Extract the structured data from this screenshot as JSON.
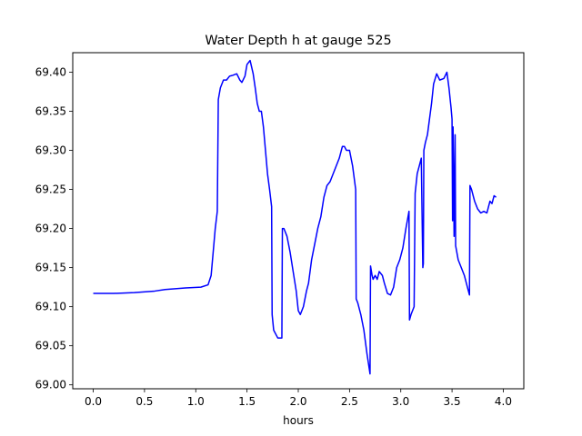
{
  "chart_data": {
    "type": "line",
    "title": "Water Depth h at gauge 525",
    "xlabel": "hours",
    "ylabel": "",
    "xlim": [
      -0.2,
      4.2
    ],
    "ylim": [
      68.995,
      69.425
    ],
    "grid": false,
    "x_ticks": [
      0.0,
      0.5,
      1.0,
      1.5,
      2.0,
      2.5,
      3.0,
      3.5,
      4.0
    ],
    "x_tick_labels": [
      "0.0",
      "0.5",
      "1.0",
      "1.5",
      "2.0",
      "2.5",
      "3.0",
      "3.5",
      "4.0"
    ],
    "y_ticks": [
      69.0,
      69.05,
      69.1,
      69.15,
      69.2,
      69.25,
      69.3,
      69.35,
      69.4
    ],
    "y_tick_labels": [
      "69.00",
      "69.05",
      "69.10",
      "69.15",
      "69.20",
      "69.25",
      "69.30",
      "69.35",
      "69.40"
    ],
    "series": [
      {
        "color": "#0000ff",
        "points": [
          [
            0.0,
            69.117
          ],
          [
            0.2,
            69.117
          ],
          [
            0.4,
            69.118
          ],
          [
            0.6,
            69.12
          ],
          [
            0.7,
            69.122
          ],
          [
            0.9,
            69.124
          ],
          [
            1.05,
            69.125
          ],
          [
            1.12,
            69.128
          ],
          [
            1.15,
            69.14
          ],
          [
            1.17,
            69.17
          ],
          [
            1.19,
            69.2
          ],
          [
            1.21,
            69.222
          ],
          [
            1.22,
            69.365
          ],
          [
            1.24,
            69.38
          ],
          [
            1.27,
            69.39
          ],
          [
            1.3,
            69.39
          ],
          [
            1.33,
            69.395
          ],
          [
            1.36,
            69.396
          ],
          [
            1.4,
            69.398
          ],
          [
            1.43,
            69.39
          ],
          [
            1.45,
            69.387
          ],
          [
            1.48,
            69.395
          ],
          [
            1.5,
            69.41
          ],
          [
            1.53,
            69.415
          ],
          [
            1.56,
            69.398
          ],
          [
            1.58,
            69.38
          ],
          [
            1.6,
            69.36
          ],
          [
            1.62,
            69.35
          ],
          [
            1.64,
            69.35
          ],
          [
            1.66,
            69.33
          ],
          [
            1.68,
            69.3
          ],
          [
            1.7,
            69.27
          ],
          [
            1.72,
            69.25
          ],
          [
            1.74,
            69.228
          ],
          [
            1.745,
            69.09
          ],
          [
            1.76,
            69.07
          ],
          [
            1.8,
            69.06
          ],
          [
            1.84,
            69.06
          ],
          [
            1.845,
            69.2
          ],
          [
            1.86,
            69.2
          ],
          [
            1.89,
            69.19
          ],
          [
            1.92,
            69.17
          ],
          [
            1.95,
            69.145
          ],
          [
            1.98,
            69.12
          ],
          [
            2.0,
            69.095
          ],
          [
            2.02,
            69.09
          ],
          [
            2.05,
            69.1
          ],
          [
            2.08,
            69.12
          ],
          [
            2.1,
            69.13
          ],
          [
            2.13,
            69.16
          ],
          [
            2.16,
            69.18
          ],
          [
            2.19,
            69.2
          ],
          [
            2.22,
            69.215
          ],
          [
            2.25,
            69.24
          ],
          [
            2.28,
            69.255
          ],
          [
            2.31,
            69.26
          ],
          [
            2.34,
            69.27
          ],
          [
            2.37,
            69.28
          ],
          [
            2.4,
            69.29
          ],
          [
            2.43,
            69.305
          ],
          [
            2.45,
            69.305
          ],
          [
            2.47,
            69.3
          ],
          [
            2.5,
            69.3
          ],
          [
            2.53,
            69.28
          ],
          [
            2.56,
            69.25
          ],
          [
            2.565,
            69.11
          ],
          [
            2.58,
            69.105
          ],
          [
            2.61,
            69.09
          ],
          [
            2.64,
            69.07
          ],
          [
            2.67,
            69.04
          ],
          [
            2.7,
            69.014
          ],
          [
            2.705,
            69.152
          ],
          [
            2.72,
            69.14
          ],
          [
            2.73,
            69.135
          ],
          [
            2.75,
            69.14
          ],
          [
            2.77,
            69.135
          ],
          [
            2.79,
            69.145
          ],
          [
            2.82,
            69.14
          ],
          [
            2.84,
            69.13
          ],
          [
            2.87,
            69.117
          ],
          [
            2.9,
            69.115
          ],
          [
            2.93,
            69.125
          ],
          [
            2.96,
            69.15
          ],
          [
            2.99,
            69.16
          ],
          [
            3.02,
            69.175
          ],
          [
            3.05,
            69.2
          ],
          [
            3.08,
            69.222
          ],
          [
            3.085,
            69.083
          ],
          [
            3.1,
            69.09
          ],
          [
            3.13,
            69.1
          ],
          [
            3.14,
            69.245
          ],
          [
            3.16,
            69.27
          ],
          [
            3.18,
            69.28
          ],
          [
            3.2,
            69.29
          ],
          [
            3.215,
            69.15
          ],
          [
            3.22,
            69.155
          ],
          [
            3.225,
            69.3
          ],
          [
            3.24,
            69.31
          ],
          [
            3.26,
            69.32
          ],
          [
            3.28,
            69.34
          ],
          [
            3.3,
            69.36
          ],
          [
            3.32,
            69.385
          ],
          [
            3.35,
            69.398
          ],
          [
            3.38,
            69.39
          ],
          [
            3.42,
            69.392
          ],
          [
            3.45,
            69.4
          ],
          [
            3.47,
            69.38
          ],
          [
            3.49,
            69.355
          ],
          [
            3.5,
            69.34
          ],
          [
            3.505,
            69.21
          ],
          [
            3.51,
            69.33
          ],
          [
            3.52,
            69.19
          ],
          [
            3.53,
            69.32
          ],
          [
            3.535,
            69.178
          ],
          [
            3.56,
            69.16
          ],
          [
            3.59,
            69.15
          ],
          [
            3.62,
            69.14
          ],
          [
            3.65,
            69.125
          ],
          [
            3.67,
            69.115
          ],
          [
            3.675,
            69.255
          ],
          [
            3.69,
            69.25
          ],
          [
            3.72,
            69.235
          ],
          [
            3.75,
            69.225
          ],
          [
            3.78,
            69.22
          ],
          [
            3.81,
            69.222
          ],
          [
            3.84,
            69.22
          ],
          [
            3.87,
            69.235
          ],
          [
            3.89,
            69.232
          ],
          [
            3.91,
            69.242
          ],
          [
            3.93,
            69.24
          ]
        ]
      }
    ]
  }
}
